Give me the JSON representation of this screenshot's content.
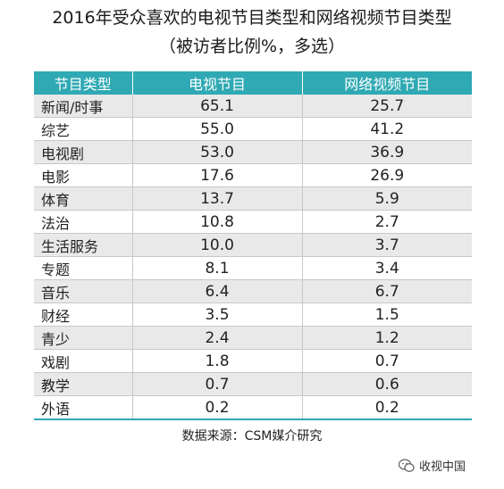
{
  "title": "2016年受众喜欢的电视节目类型和网络视频节目类型",
  "subtitle": "（被访者比例%，多选）",
  "source": "数据来源：CSM媒介研究",
  "watermark": "收视中国",
  "colors": {
    "header_bg": "#2fa9b3",
    "stripe": "#e9e9e9"
  },
  "chart_data": {
    "type": "table",
    "columns": [
      "节目类型",
      "电视节目",
      "网络视频节目"
    ],
    "rows": [
      [
        "新闻/时事",
        "65.1",
        "25.7"
      ],
      [
        "综艺",
        "55.0",
        "41.2"
      ],
      [
        "电视剧",
        "53.0",
        "36.9"
      ],
      [
        "电影",
        "17.6",
        "26.9"
      ],
      [
        "体育",
        "13.7",
        "5.9"
      ],
      [
        "法治",
        "10.8",
        "2.7"
      ],
      [
        "生活服务",
        "10.0",
        "3.7"
      ],
      [
        "专题",
        "8.1",
        "3.4"
      ],
      [
        "音乐",
        "6.4",
        "6.7"
      ],
      [
        "财经",
        "3.5",
        "1.5"
      ],
      [
        "青少",
        "2.4",
        "1.2"
      ],
      [
        "戏剧",
        "1.8",
        "0.7"
      ],
      [
        "教学",
        "0.7",
        "0.6"
      ],
      [
        "外语",
        "0.2",
        "0.2"
      ]
    ]
  }
}
